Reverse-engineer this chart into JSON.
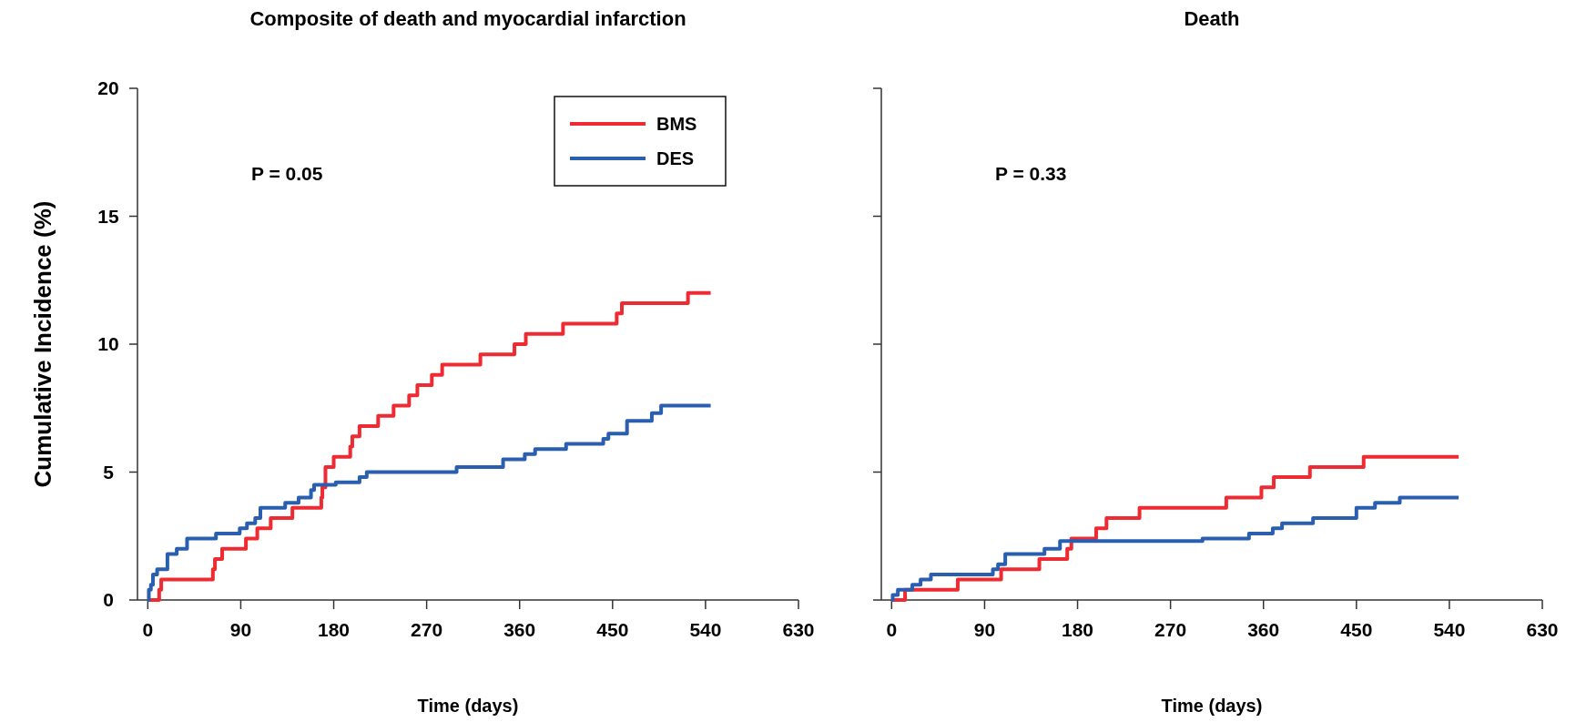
{
  "chart_data": [
    {
      "type": "step",
      "title": "Composite of death and myocardial infarction",
      "xlabel": "Time  (days)",
      "ylabel": "Cumulative Incidence (%)",
      "xlim": [
        -10,
        630
      ],
      "ylim": [
        0,
        20
      ],
      "xticks": [
        0,
        90,
        180,
        270,
        360,
        450,
        540,
        630
      ],
      "yticks": [
        0,
        5,
        10,
        15,
        20
      ],
      "legend": "top right",
      "grid": false,
      "annotations": [
        "P = 0.05"
      ],
      "series": [
        {
          "name": "BMS",
          "color": "#ee2a32",
          "x": [
            0,
            11,
            13,
            63,
            65,
            72,
            95,
            106,
            119,
            140,
            168,
            169,
            172,
            180,
            196,
            198,
            205,
            223,
            238,
            253,
            261,
            275,
            285,
            322,
            355,
            366,
            402,
            454,
            459,
            523,
            545
          ],
          "values": [
            0,
            0.4,
            0.8,
            1.2,
            1.6,
            2.0,
            2.4,
            2.8,
            3.2,
            3.6,
            4.0,
            4.4,
            5.2,
            5.6,
            6.0,
            6.4,
            6.8,
            7.2,
            7.6,
            8.0,
            8.4,
            8.8,
            9.2,
            9.6,
            10.0,
            10.4,
            10.8,
            11.2,
            11.6,
            12.0,
            12.0
          ]
        },
        {
          "name": "DES",
          "color": "#2a5fb0",
          "x": [
            0,
            1,
            3,
            5,
            9,
            19,
            28,
            38,
            66,
            89,
            96,
            104,
            109,
            133,
            146,
            158,
            161,
            182,
            205,
            212,
            299,
            344,
            365,
            375,
            405,
            441,
            446,
            464,
            488,
            497,
            545
          ],
          "values": [
            0,
            0.4,
            0.6,
            1.0,
            1.2,
            1.8,
            2.0,
            2.4,
            2.6,
            2.8,
            3.0,
            3.2,
            3.6,
            3.8,
            4.0,
            4.3,
            4.5,
            4.6,
            4.8,
            5.0,
            5.2,
            5.5,
            5.7,
            5.9,
            6.1,
            6.3,
            6.5,
            7.0,
            7.3,
            7.6,
            7.6
          ]
        }
      ]
    },
    {
      "type": "step",
      "title": "Death",
      "xlabel": "Time  (days)",
      "xlim": [
        -10,
        630
      ],
      "ylim": [
        0,
        20
      ],
      "xticks": [
        0,
        90,
        180,
        270,
        360,
        450,
        540,
        630
      ],
      "yticks": [
        0,
        5,
        10,
        15,
        20
      ],
      "tick_labels": "x",
      "legend": false,
      "grid": false,
      "annotations": [
        "P = 0.33"
      ],
      "series": [
        {
          "color": "#ee2a32",
          "x": [
            0,
            13,
            64,
            106,
            143,
            170,
            174,
            198,
            208,
            240,
            324,
            358,
            370,
            405,
            457,
            549
          ],
          "values": [
            0,
            0.4,
            0.8,
            1.2,
            1.6,
            2.0,
            2.4,
            2.8,
            3.2,
            3.6,
            4.0,
            4.4,
            4.8,
            5.2,
            5.6,
            5.6
          ]
        },
        {
          "color": "#2a5fb0",
          "x": [
            0,
            1,
            6,
            20,
            28,
            38,
            98,
            103,
            110,
            148,
            163,
            301,
            346,
            369,
            378,
            408,
            450,
            468,
            492,
            549
          ],
          "values": [
            0,
            0.2,
            0.4,
            0.6,
            0.8,
            1.0,
            1.2,
            1.4,
            1.8,
            2.0,
            2.3,
            2.4,
            2.6,
            2.8,
            3.0,
            3.2,
            3.6,
            3.8,
            4.0,
            4.0
          ]
        }
      ]
    }
  ]
}
